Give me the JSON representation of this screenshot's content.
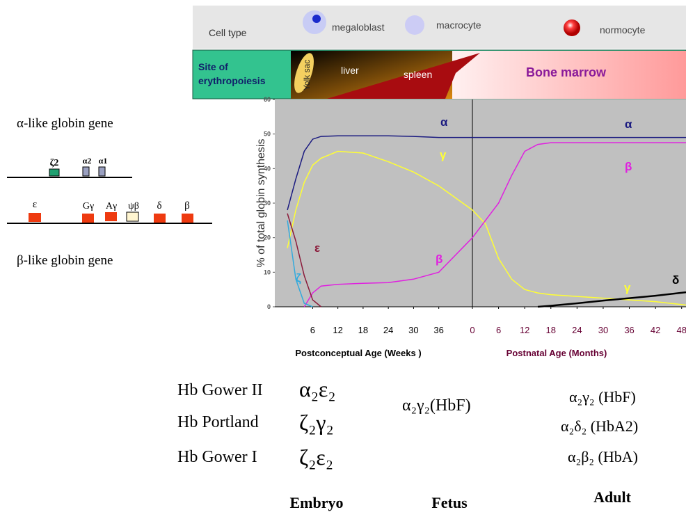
{
  "cell_type": {
    "label": "Cell type",
    "items": [
      "megaloblast",
      "macrocyte",
      "normocyte"
    ]
  },
  "site": {
    "label": [
      "Site of",
      "erythropoiesis"
    ],
    "items": [
      "Yolk sac",
      "liver",
      "spleen",
      "Bone marrow"
    ]
  },
  "genes": {
    "alpha_title": "α-like globin gene",
    "alpha_genes": [
      "ζ2",
      "α2",
      "α1"
    ],
    "beta_title": "β-like globin gene",
    "beta_genes": [
      "ε",
      "Gγ",
      "Aγ",
      "ψβ",
      "δ",
      "β"
    ]
  },
  "chart_data": [
    {
      "type": "line",
      "y_label": "% of total  globin synthesis",
      "x_label": "Postconceptual  Age (Weeks )",
      "x": [
        0,
        2,
        4,
        6,
        8,
        12,
        18,
        24,
        30,
        36,
        44
      ],
      "xlim": [
        -3,
        44
      ],
      "xticks": [
        6,
        12,
        18,
        24,
        30,
        36
      ],
      "ylim": [
        0,
        60
      ],
      "yticks": [
        0,
        10,
        20,
        30,
        40,
        50,
        60
      ],
      "series": [
        {
          "name": "α",
          "color": "#1a1a80",
          "values": [
            28,
            37,
            45,
            48.5,
            49.3,
            49.5,
            49.5,
            49.5,
            49.3,
            49,
            49
          ]
        },
        {
          "name": "γ",
          "color": "#ffff33",
          "values": [
            17,
            28,
            36,
            41,
            43,
            45,
            44.5,
            42,
            39,
            35,
            28
          ]
        },
        {
          "name": "β",
          "color": "#e020e0",
          "values": [
            null,
            null,
            0,
            4,
            6,
            6.5,
            6.8,
            7,
            8,
            10,
            20
          ]
        },
        {
          "name": "ε",
          "color": "#8b1a3a",
          "values": [
            27,
            19,
            9,
            2,
            0,
            null,
            null,
            null,
            null,
            null,
            null
          ]
        },
        {
          "name": "ζ",
          "color": "#33aadd",
          "values": [
            25,
            8,
            1,
            0,
            null,
            null,
            null,
            null,
            null,
            null,
            null
          ]
        }
      ]
    },
    {
      "type": "line",
      "x_label": "Postnatal Age (Months)",
      "x": [
        0,
        3,
        6,
        9,
        12,
        15,
        18,
        24,
        30,
        36,
        42,
        49
      ],
      "xlim": [
        0,
        49
      ],
      "xticks": [
        0,
        6,
        12,
        18,
        24,
        30,
        36,
        42,
        48
      ],
      "ylim": [
        0,
        60
      ],
      "series": [
        {
          "name": "α",
          "color": "#1a1a80",
          "values": [
            49,
            49,
            49,
            49,
            49,
            49,
            49,
            49,
            49,
            49,
            49,
            49
          ]
        },
        {
          "name": "γ",
          "color": "#ffff33",
          "values": [
            28,
            24,
            14,
            8,
            5,
            4,
            3.5,
            3,
            2.5,
            2,
            1.5,
            0.5
          ]
        },
        {
          "name": "β",
          "color": "#e020e0",
          "values": [
            20,
            25,
            30,
            38,
            45,
            47,
            47.5,
            47.5,
            47.5,
            47.5,
            47.5,
            47.5
          ]
        },
        {
          "name": "δ",
          "color": "#000000",
          "values": [
            null,
            null,
            null,
            null,
            null,
            0,
            0.3,
            1,
            1.8,
            2.5,
            3.2,
            4.2
          ]
        }
      ]
    }
  ],
  "hemoglobins": {
    "embryo": {
      "names": [
        "Hb Gower II",
        "Hb Portland",
        "Hb Gower I"
      ],
      "formulas": [
        "α₂ε₂",
        "ζ₂γ₂",
        "ζ₂ε₂"
      ]
    },
    "fetus": {
      "formulas": [
        "α₂γ₂(HbF)"
      ]
    },
    "adult": {
      "formulas": [
        "α₂γ₂ (HbF)",
        "α₂δ₂ (HbA2)",
        "α₂β₂ (HbA)"
      ]
    },
    "stages": [
      "Embryo",
      "Fetus",
      "Adult"
    ]
  }
}
